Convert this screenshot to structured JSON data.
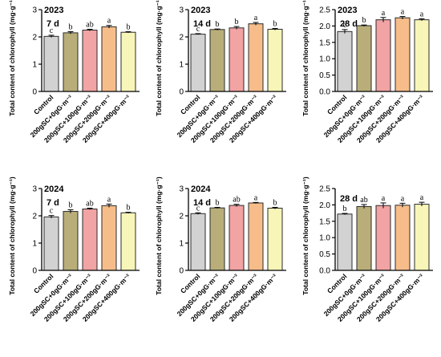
{
  "colors": {
    "axis": "#000000",
    "bar_outline": "#2b2b2b",
    "bars": [
      "#d2d2d2",
      "#b9ae7a",
      "#f2a3a3",
      "#f6bd8a",
      "#f7f5b8"
    ]
  },
  "chart_data": [
    {
      "type": "bar",
      "year": "2023",
      "day": "7 d",
      "ylabel": "Total content of chlorophyll (mg·g⁻¹)",
      "ylim": [
        0,
        3
      ],
      "yticks": [
        "0",
        "1",
        "2",
        "3"
      ],
      "categories": [
        "Control",
        "200gSC+0gG·m⁻²",
        "200gSC+100gG·m⁻²",
        "200gSC+200gG·m⁻²",
        "200gSC+400gG·m⁻²"
      ],
      "values": [
        2.02,
        2.15,
        2.25,
        2.37,
        2.17
      ],
      "errors": [
        0.04,
        0.04,
        0.03,
        0.05,
        0.02
      ],
      "letters": [
        "c",
        "b",
        "ab",
        "a",
        "b"
      ]
    },
    {
      "type": "bar",
      "year": "2023",
      "day": "14 d",
      "ylabel": "Total content of chlorophyll (mg·g⁻¹)",
      "ylim": [
        0,
        3
      ],
      "yticks": [
        "0",
        "1",
        "2",
        "3"
      ],
      "categories": [
        "Control",
        "200gSC+0gG·m⁻²",
        "200gSC+100gG·m⁻²",
        "200gSC+200gG·m⁻²",
        "200gSC+400gG·m⁻²"
      ],
      "values": [
        2.1,
        2.27,
        2.33,
        2.48,
        2.28
      ],
      "errors": [
        0.02,
        0.02,
        0.05,
        0.05,
        0.03
      ],
      "letters": [
        "c",
        "b",
        "b",
        "a",
        "b"
      ]
    },
    {
      "type": "bar",
      "year": "2023",
      "day": "28 d",
      "ylabel": "Total content of chlorophyll (mg·g⁻¹)",
      "ylim": [
        0,
        2.5
      ],
      "yticks": [
        "0.0",
        "0.5",
        "1.0",
        "1.5",
        "2.0",
        "2.5"
      ],
      "categories": [
        "Control",
        "200gSC+0gG·m⁻²",
        "200gSC+100gG·m⁻²",
        "200gSC+200gG·m⁻²",
        "200gSC+400gG·m⁻²"
      ],
      "values": [
        1.83,
        2.01,
        2.19,
        2.25,
        2.19
      ],
      "errors": [
        0.06,
        0.02,
        0.07,
        0.04,
        0.03
      ],
      "letters": [
        "c",
        "b",
        "a",
        "a",
        "a"
      ]
    },
    {
      "type": "bar",
      "year": "2024",
      "day": "7 d",
      "ylabel": "Total content of chlorophyll (mg·g⁻¹)",
      "ylim": [
        0,
        3
      ],
      "yticks": [
        "0",
        "1",
        "2",
        "3"
      ],
      "categories": [
        "Control",
        "200gSC+0gG·m⁻²",
        "200gSC+100gG·m⁻²",
        "200gSC+200gG·m⁻²",
        "200gSC+400gG·m⁻²"
      ],
      "values": [
        1.96,
        2.16,
        2.25,
        2.37,
        2.11
      ],
      "errors": [
        0.05,
        0.06,
        0.03,
        0.06,
        0.02
      ],
      "letters": [
        "c",
        "b",
        "ab",
        "a",
        "b"
      ]
    },
    {
      "type": "bar",
      "year": "2024",
      "day": "14 d",
      "ylabel": "Total content of chlorophyll (mg·g⁻¹)",
      "ylim": [
        0,
        3
      ],
      "yticks": [
        "0",
        "1",
        "2",
        "3"
      ],
      "categories": [
        "Control",
        "200gSC+0gG·m⁻²",
        "200gSC+100gG·m⁻²",
        "200gSC+200gG·m⁻²",
        "200gSC+400gG·m⁻²"
      ],
      "values": [
        2.08,
        2.29,
        2.38,
        2.47,
        2.28
      ],
      "errors": [
        0.03,
        0.02,
        0.04,
        0.02,
        0.03
      ],
      "letters": [
        "c",
        "b",
        "ab",
        "a",
        "b"
      ]
    },
    {
      "type": "bar",
      "year": "",
      "day": "28 d",
      "ylabel": "Total content of chlorophyll (mg·g⁻¹)",
      "ylim": [
        0,
        2.5
      ],
      "yticks": [
        "0.0",
        "0.5",
        "1.0",
        "1.5",
        "2.0",
        "2.5"
      ],
      "categories": [
        "Control",
        "200gSC+0gG·m⁻²",
        "200gSC+100gG·m⁻²",
        "200gSC+200gG·m⁻²",
        "200gSC+400gG·m⁻²"
      ],
      "values": [
        1.72,
        1.95,
        1.98,
        1.99,
        2.02
      ],
      "errors": [
        0.02,
        0.06,
        0.08,
        0.06,
        0.06
      ],
      "letters": [
        "b",
        "ab",
        "a",
        "a",
        "a"
      ]
    }
  ]
}
